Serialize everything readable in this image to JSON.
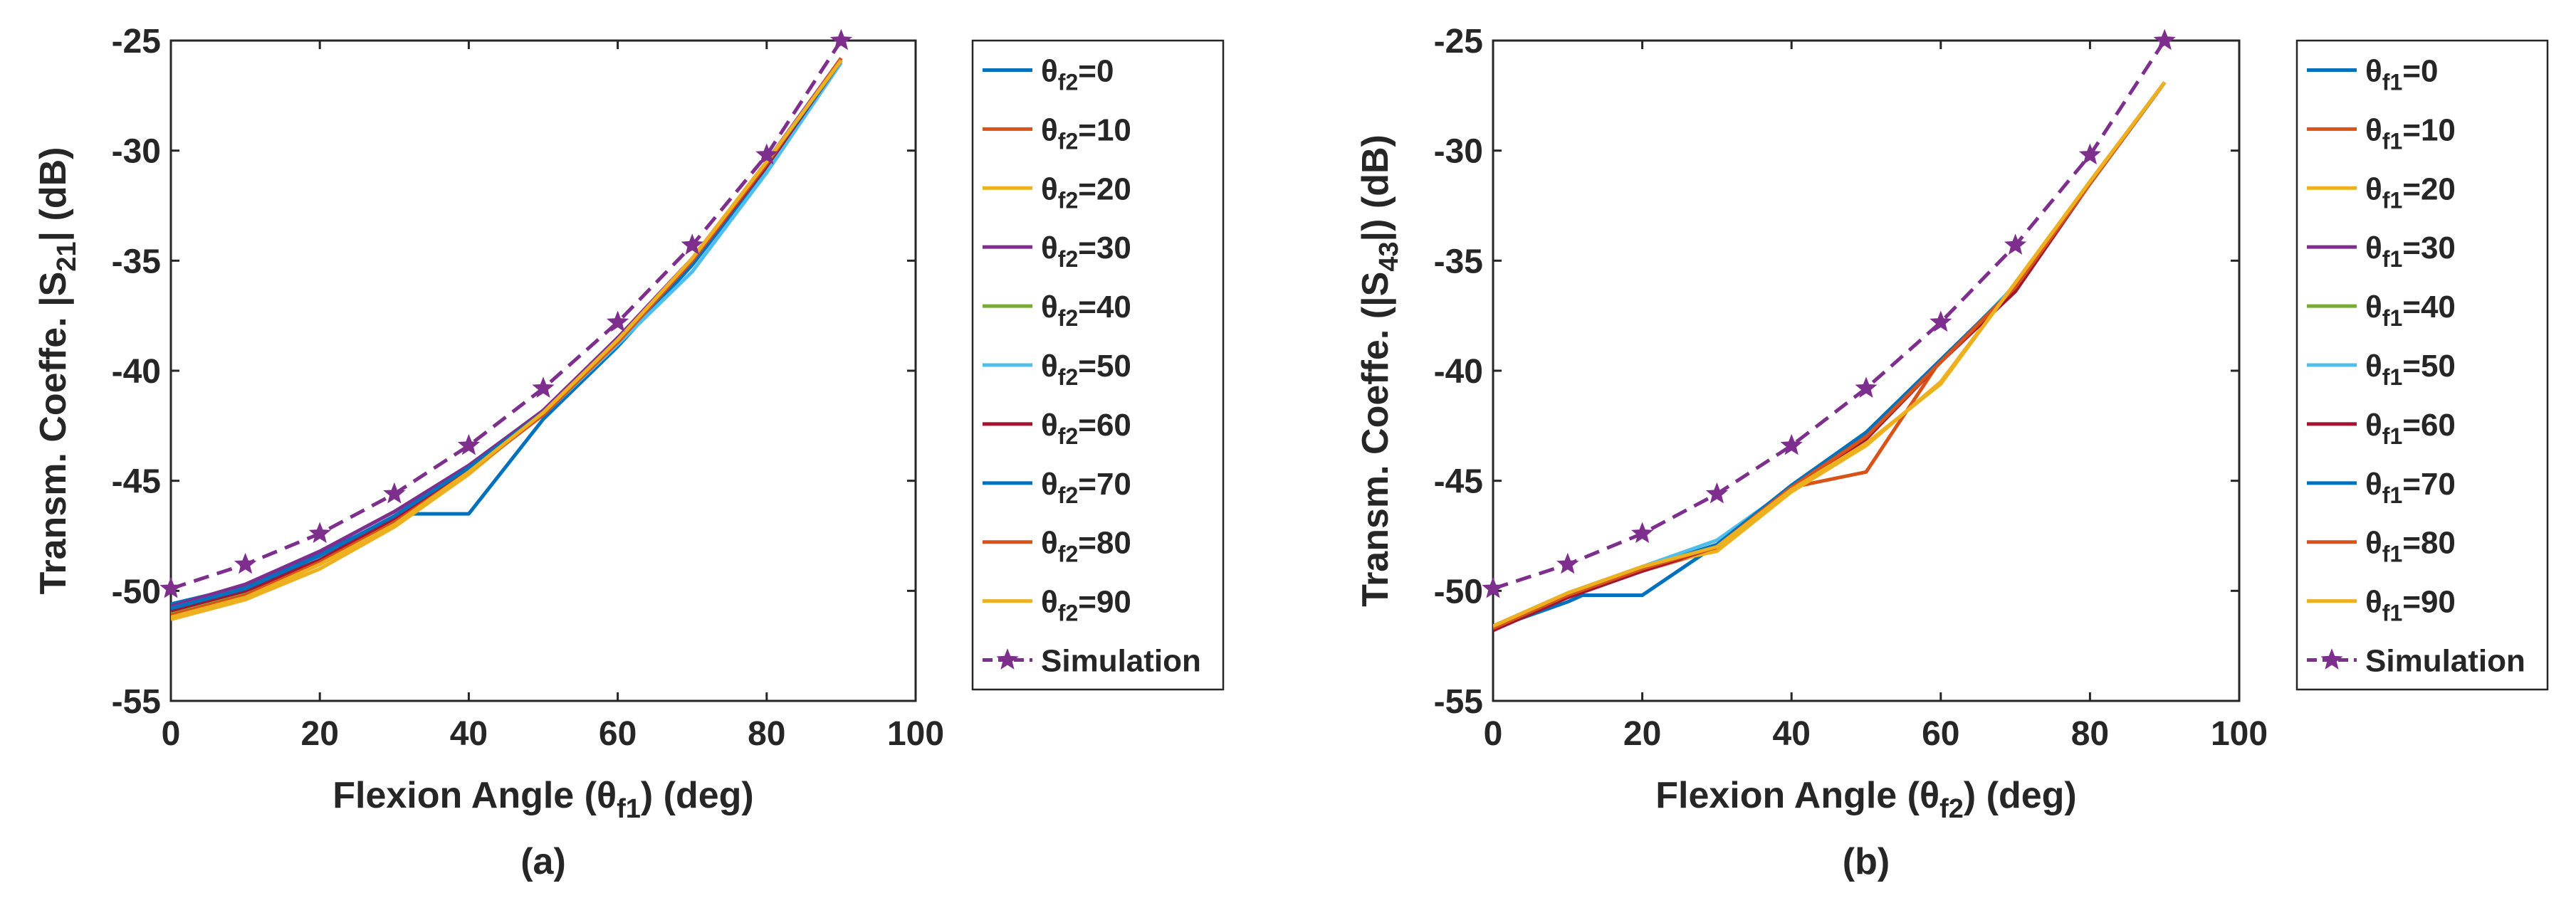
{
  "chart_data": [
    {
      "type": "line",
      "panel_label": "(a)",
      "xlabel": {
        "prefix": "Flexion Angle (",
        "symbol": "θ",
        "sub": "f1",
        "suffix": ") (deg)"
      },
      "ylabel": {
        "prefix": "Transm. Coeffe. |S",
        "sub": "21",
        "suffix": "| (dB)"
      },
      "xlim": [
        0,
        100
      ],
      "ylim": [
        -55,
        -25
      ],
      "xticks": [
        0,
        20,
        40,
        60,
        80,
        100
      ],
      "yticks": [
        -55,
        -50,
        -45,
        -40,
        -35,
        -30,
        -25
      ],
      "legend_location": "outside-right",
      "series": [
        {
          "name": "θf2=0",
          "legend_symbol": "θ",
          "legend_sub": "f2",
          "legend_value": "=0",
          "color": "#0072BD",
          "style": "solid",
          "x": [
            0,
            10,
            20,
            30,
            32,
            40,
            50,
            60,
            70,
            80,
            90
          ],
          "y": [
            -50.6,
            -49.8,
            -48.3,
            -46.7,
            -46.5,
            -46.5,
            -42.2,
            -38.9,
            -35.2,
            -30.8,
            -26.0
          ]
        },
        {
          "name": "θf2=10",
          "legend_symbol": "θ",
          "legend_sub": "f2",
          "legend_value": "=10",
          "color": "#D95319",
          "style": "solid",
          "x": [
            0,
            10,
            20,
            30,
            40,
            50,
            60,
            70,
            80,
            90
          ],
          "y": [
            -51.0,
            -50.1,
            -48.6,
            -46.8,
            -44.6,
            -42.0,
            -38.7,
            -35.0,
            -30.6,
            -25.9
          ]
        },
        {
          "name": "θf2=20",
          "legend_symbol": "θ",
          "legend_sub": "f2",
          "legend_value": "=20",
          "color": "#EDB120",
          "style": "solid",
          "x": [
            0,
            10,
            20,
            30,
            40,
            50,
            60,
            70,
            80,
            90
          ],
          "y": [
            -51.3,
            -50.4,
            -49.0,
            -47.1,
            -44.7,
            -41.9,
            -38.6,
            -35.0,
            -30.7,
            -26.0
          ]
        },
        {
          "name": "θf2=30",
          "legend_symbol": "θ",
          "legend_sub": "f2",
          "legend_value": "=30",
          "color": "#7E2F8E",
          "style": "solid",
          "x": [
            0,
            10,
            20,
            30,
            40,
            50,
            60,
            70,
            80,
            90
          ],
          "y": [
            -50.7,
            -49.7,
            -48.2,
            -46.4,
            -44.3,
            -41.8,
            -38.5,
            -34.9,
            -30.5,
            -25.8
          ]
        },
        {
          "name": "θf2=40",
          "legend_symbol": "θ",
          "legend_sub": "f2",
          "legend_value": "=40",
          "color": "#77AC30",
          "style": "solid",
          "x": [
            0,
            10,
            20,
            30,
            40,
            50,
            60,
            70,
            80,
            90
          ],
          "y": [
            -51.0,
            -50.1,
            -48.6,
            -46.8,
            -44.5,
            -41.9,
            -38.6,
            -35.0,
            -30.6,
            -25.9
          ]
        },
        {
          "name": "θf2=50",
          "legend_symbol": "θ",
          "legend_sub": "f2",
          "legend_value": "=50",
          "color": "#4DBEEE",
          "style": "solid",
          "x": [
            0,
            10,
            20,
            30,
            40,
            50,
            60,
            70,
            80,
            90
          ],
          "y": [
            -50.8,
            -49.9,
            -48.5,
            -46.7,
            -44.5,
            -42.0,
            -38.8,
            -35.5,
            -31.0,
            -26.0
          ]
        },
        {
          "name": "θf2=60",
          "legend_symbol": "θ",
          "legend_sub": "f2",
          "legend_value": "=60",
          "color": "#A2142F",
          "style": "solid",
          "x": [
            0,
            10,
            20,
            30,
            40,
            50,
            60,
            70,
            80,
            90
          ],
          "y": [
            -50.9,
            -50.0,
            -48.6,
            -46.7,
            -44.5,
            -41.9,
            -38.7,
            -35.0,
            -30.7,
            -25.9
          ]
        },
        {
          "name": "θf2=70",
          "legend_symbol": "θ",
          "legend_sub": "f2",
          "legend_value": "=70",
          "color": "#0072BD",
          "style": "solid",
          "x": [
            0,
            10,
            20,
            30,
            40,
            50,
            60,
            70,
            80,
            90
          ],
          "y": [
            -50.8,
            -49.9,
            -48.4,
            -46.6,
            -44.4,
            -41.9,
            -38.7,
            -35.0,
            -30.6,
            -25.9
          ]
        },
        {
          "name": "θf2=80",
          "legend_symbol": "θ",
          "legend_sub": "f2",
          "legend_value": "=80",
          "color": "#D95319",
          "style": "solid",
          "x": [
            0,
            10,
            20,
            30,
            40,
            50,
            60,
            70,
            80,
            90
          ],
          "y": [
            -51.1,
            -50.2,
            -48.7,
            -46.9,
            -44.6,
            -42.0,
            -38.7,
            -35.0,
            -30.6,
            -25.8
          ]
        },
        {
          "name": "θf2=90",
          "legend_symbol": "θ",
          "legend_sub": "f2",
          "legend_value": "=90",
          "color": "#EDB120",
          "style": "solid",
          "x": [
            0,
            10,
            20,
            30,
            40,
            50,
            60,
            70,
            80,
            90
          ],
          "y": [
            -51.2,
            -50.3,
            -48.8,
            -47.0,
            -44.6,
            -41.9,
            -38.6,
            -34.9,
            -30.5,
            -25.9
          ]
        },
        {
          "name": "Simulation",
          "legend_symbol": "",
          "legend_sub": "",
          "legend_value": "Simulation",
          "color": "#7E2F8E",
          "style": "dashed",
          "marker": "star",
          "x": [
            0,
            10,
            20,
            30,
            40,
            50,
            60,
            70,
            80,
            90
          ],
          "y": [
            -49.9,
            -48.8,
            -47.4,
            -45.6,
            -43.4,
            -40.8,
            -37.8,
            -34.3,
            -30.2,
            -25.0
          ]
        }
      ]
    },
    {
      "type": "line",
      "panel_label": "(b)",
      "xlabel": {
        "prefix": "Flexion Angle (",
        "symbol": "θ",
        "sub": "f2",
        "suffix": ") (deg)"
      },
      "ylabel": {
        "prefix": "Transm. Coeffe. (|S",
        "sub": "43",
        "suffix": "|) (dB)"
      },
      "xlim": [
        0,
        100
      ],
      "ylim": [
        -55,
        -25
      ],
      "xticks": [
        0,
        20,
        40,
        60,
        80,
        100
      ],
      "yticks": [
        -55,
        -50,
        -45,
        -40,
        -35,
        -30,
        -25
      ],
      "legend_location": "outside-right",
      "series": [
        {
          "name": "θf1=0",
          "legend_symbol": "θ",
          "legend_sub": "f1",
          "legend_value": "=0",
          "color": "#0072BD",
          "style": "solid",
          "x": [
            0,
            10,
            12,
            20,
            30,
            40,
            50,
            60,
            70,
            80,
            90
          ],
          "y": [
            -51.7,
            -50.5,
            -50.2,
            -50.2,
            -47.9,
            -45.3,
            -42.9,
            -39.6,
            -36.2,
            -31.5,
            -26.9
          ]
        },
        {
          "name": "θf1=10",
          "legend_symbol": "θ",
          "legend_sub": "f1",
          "legend_value": "=10",
          "color": "#D95319",
          "style": "solid",
          "x": [
            0,
            10,
            20,
            30,
            40,
            50,
            60,
            70,
            80,
            90
          ],
          "y": [
            -51.8,
            -50.2,
            -49.1,
            -48.1,
            -45.3,
            -44.6,
            -39.5,
            -36.2,
            -31.4,
            -26.9
          ]
        },
        {
          "name": "θf1=20",
          "legend_symbol": "θ",
          "legend_sub": "f1",
          "legend_value": "=20",
          "color": "#EDB120",
          "style": "solid",
          "x": [
            0,
            10,
            20,
            30,
            40,
            50,
            60,
            70,
            80,
            90
          ],
          "y": [
            -51.6,
            -50.1,
            -48.9,
            -48.2,
            -45.5,
            -43.4,
            -40.5,
            -36.0,
            -31.4,
            -26.9
          ]
        },
        {
          "name": "θf1=30",
          "legend_symbol": "θ",
          "legend_sub": "f1",
          "legend_value": "=30",
          "color": "#7E2F8E",
          "style": "solid",
          "x": [
            0,
            10,
            20,
            30,
            40,
            50,
            60,
            70,
            80,
            90
          ],
          "y": [
            -51.6,
            -50.2,
            -49.0,
            -47.9,
            -45.3,
            -43.1,
            -39.6,
            -36.2,
            -31.5,
            -26.9
          ]
        },
        {
          "name": "θf1=40",
          "legend_symbol": "θ",
          "legend_sub": "f1",
          "legend_value": "=40",
          "color": "#77AC30",
          "style": "solid",
          "x": [
            0,
            10,
            20,
            30,
            40,
            50,
            60,
            70,
            80,
            90
          ],
          "y": [
            -51.6,
            -50.2,
            -49.0,
            -47.9,
            -45.3,
            -43.0,
            -39.6,
            -36.2,
            -31.5,
            -26.9
          ]
        },
        {
          "name": "θf1=50",
          "legend_symbol": "θ",
          "legend_sub": "f1",
          "legend_value": "=50",
          "color": "#4DBEEE",
          "style": "solid",
          "x": [
            0,
            10,
            20,
            30,
            40,
            50,
            60,
            70,
            80,
            90
          ],
          "y": [
            -51.6,
            -50.1,
            -48.9,
            -47.7,
            -45.3,
            -43.0,
            -39.6,
            -36.1,
            -31.5,
            -26.9
          ]
        },
        {
          "name": "θf1=60",
          "legend_symbol": "θ",
          "legend_sub": "f1",
          "legend_value": "=60",
          "color": "#A2142F",
          "style": "solid",
          "x": [
            0,
            10,
            20,
            30,
            40,
            50,
            60,
            70,
            80,
            90
          ],
          "y": [
            -51.8,
            -50.3,
            -49.1,
            -48.0,
            -45.3,
            -43.1,
            -39.6,
            -36.4,
            -31.5,
            -26.9
          ]
        },
        {
          "name": "θf1=70",
          "legend_symbol": "θ",
          "legend_sub": "f1",
          "legend_value": "=70",
          "color": "#0072BD",
          "style": "solid",
          "x": [
            0,
            10,
            20,
            30,
            40,
            50,
            60,
            70,
            80,
            90
          ],
          "y": [
            -51.7,
            -50.2,
            -49.0,
            -47.9,
            -45.2,
            -42.8,
            -39.5,
            -36.2,
            -31.5,
            -26.9
          ]
        },
        {
          "name": "θf1=80",
          "legend_symbol": "θ",
          "legend_sub": "f1",
          "legend_value": "=80",
          "color": "#D95319",
          "style": "solid",
          "x": [
            0,
            10,
            20,
            30,
            40,
            50,
            60,
            70,
            80,
            90
          ],
          "y": [
            -51.7,
            -50.2,
            -49.0,
            -48.0,
            -45.3,
            -43.0,
            -39.6,
            -36.2,
            -31.5,
            -26.9
          ]
        },
        {
          "name": "θf1=90",
          "legend_symbol": "θ",
          "legend_sub": "f1",
          "legend_value": "=90",
          "color": "#EDB120",
          "style": "solid",
          "x": [
            0,
            10,
            20,
            30,
            40,
            50,
            60,
            70,
            80,
            90
          ],
          "y": [
            -51.6,
            -50.1,
            -48.9,
            -48.0,
            -45.4,
            -43.3,
            -40.6,
            -36.0,
            -31.4,
            -26.9
          ]
        },
        {
          "name": "Simulation",
          "legend_symbol": "",
          "legend_sub": "",
          "legend_value": "Simulation",
          "color": "#7E2F8E",
          "style": "dashed",
          "marker": "star",
          "x": [
            0,
            10,
            20,
            30,
            40,
            50,
            60,
            70,
            80,
            90
          ],
          "y": [
            -49.9,
            -48.8,
            -47.4,
            -45.6,
            -43.4,
            -40.8,
            -37.8,
            -34.3,
            -30.2,
            -25.0
          ]
        }
      ]
    }
  ]
}
